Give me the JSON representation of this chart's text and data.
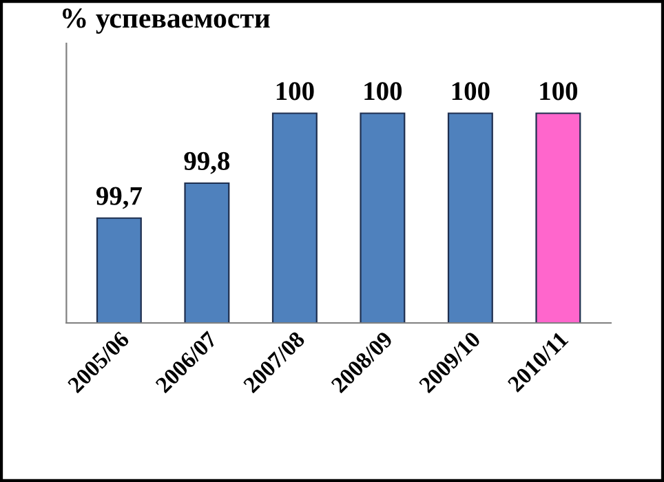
{
  "chart_data": {
    "type": "bar",
    "title": "% успеваемости",
    "categories": [
      "2005/06",
      "2006/07",
      "2007/08",
      "2008/09",
      "2009/10",
      "2010/11"
    ],
    "values": [
      99.7,
      99.8,
      100,
      100,
      100,
      100
    ],
    "value_labels": [
      "99,7",
      "99,8",
      "100",
      "100",
      "100",
      "100"
    ],
    "colors": [
      "#4f81bd",
      "#4f81bd",
      "#4f81bd",
      "#4f81bd",
      "#4f81bd",
      "#ff66cc"
    ],
    "ylim": [
      99.4,
      100.2
    ],
    "tick_labels": "x",
    "grid": false
  }
}
